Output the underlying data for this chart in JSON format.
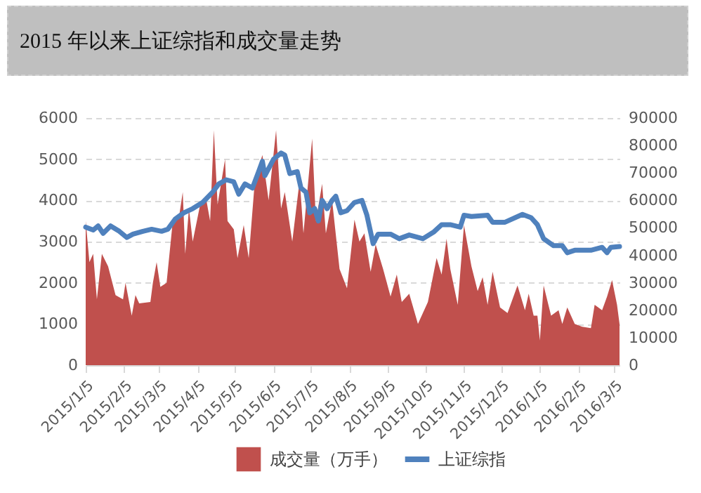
{
  "chart_data": {
    "type": "line",
    "title": "2015 年以来上证综指和成交量走势",
    "xlim": [
      "2015-01-05",
      "2016-03-09"
    ],
    "xticks": [
      {
        "value": "2015-01-05",
        "label": "2015/1/5"
      },
      {
        "value": "2015-02-05",
        "label": "2015/2/5"
      },
      {
        "value": "2015-03-05",
        "label": "2015/3/5"
      },
      {
        "value": "2015-04-05",
        "label": "2015/4/5"
      },
      {
        "value": "2015-05-05",
        "label": "2015/5/5"
      },
      {
        "value": "2015-06-05",
        "label": "2015/6/5"
      },
      {
        "value": "2015-07-05",
        "label": "2015/7/5"
      },
      {
        "value": "2015-08-05",
        "label": "2015/8/5"
      },
      {
        "value": "2015-09-05",
        "label": "2015/9/5"
      },
      {
        "value": "2015-10-05",
        "label": "2015/10/5"
      },
      {
        "value": "2015-11-05",
        "label": "2015/11/5"
      },
      {
        "value": "2015-12-05",
        "label": "2015/12/5"
      },
      {
        "value": "2016-01-05",
        "label": "2016/1/5"
      },
      {
        "value": "2016-02-05",
        "label": "2016/2/5"
      },
      {
        "value": "2016-03-05",
        "label": "2016/3/5"
      }
    ],
    "ylim": [
      0,
      6000
    ],
    "yticks": [
      0,
      1000,
      2000,
      3000,
      4000,
      5000,
      6000
    ],
    "y2lim": [
      0,
      90000
    ],
    "y2ticks": [
      0,
      10000,
      20000,
      30000,
      40000,
      50000,
      60000,
      70000,
      80000,
      90000
    ],
    "grid": "y",
    "legend": "bottom",
    "series": [
      {
        "name": "成交量（万手）",
        "type": "area",
        "axis": "y2",
        "color": "#c0504d",
        "x": [
          "2015-01-05",
          "2015-01-08",
          "2015-01-11",
          "2015-01-14",
          "2015-01-18",
          "2015-01-23",
          "2015-01-29",
          "2015-02-04",
          "2015-02-06",
          "2015-02-11",
          "2015-02-14",
          "2015-02-17",
          "2015-02-26",
          "2015-02-28",
          "2015-03-03",
          "2015-03-06",
          "2015-03-11",
          "2015-03-16",
          "2015-03-21",
          "2015-03-24",
          "2015-03-26",
          "2015-03-29",
          "2015-04-01",
          "2015-04-07",
          "2015-04-12",
          "2015-04-15",
          "2015-04-18",
          "2015-04-21",
          "2015-04-27",
          "2015-04-29",
          "2015-05-04",
          "2015-05-07",
          "2015-05-12",
          "2015-05-16",
          "2015-05-21",
          "2015-05-27",
          "2015-06-01",
          "2015-06-07",
          "2015-06-11",
          "2015-06-14",
          "2015-06-20",
          "2015-06-26",
          "2015-06-29",
          "2015-07-06",
          "2015-07-09",
          "2015-07-14",
          "2015-07-17",
          "2015-07-22",
          "2015-07-28",
          "2015-08-03",
          "2015-08-09",
          "2015-08-13",
          "2015-08-17",
          "2015-08-22",
          "2015-08-26",
          "2015-09-01",
          "2015-09-07",
          "2015-09-12",
          "2015-09-16",
          "2015-09-22",
          "2015-09-29",
          "2015-10-07",
          "2015-10-14",
          "2015-10-18",
          "2015-10-22",
          "2015-10-25",
          "2015-10-31",
          "2015-11-05",
          "2015-11-11",
          "2015-11-16",
          "2015-11-20",
          "2015-11-24",
          "2015-11-28",
          "2015-12-04",
          "2015-12-10",
          "2015-12-18",
          "2015-12-24",
          "2015-12-27",
          "2015-12-31",
          "2016-01-03",
          "2016-01-05",
          "2016-01-08",
          "2016-01-14",
          "2016-01-20",
          "2016-01-23",
          "2016-01-27",
          "2016-02-02",
          "2016-02-08",
          "2016-02-15",
          "2016-02-18",
          "2016-02-24",
          "2016-02-28",
          "2016-03-03",
          "2016-03-07",
          "2016-03-09"
        ],
        "values": [
          52500,
          37500,
          40500,
          24000,
          40500,
          36000,
          25500,
          24000,
          30000,
          18000,
          25500,
          22500,
          23000,
          30000,
          37500,
          28500,
          30000,
          52500,
          54000,
          63000,
          40500,
          57000,
          45000,
          58500,
          60000,
          52500,
          85500,
          58500,
          75000,
          52500,
          49500,
          39000,
          51000,
          39000,
          67500,
          76500,
          60000,
          85500,
          57000,
          63000,
          45000,
          67500,
          48000,
          82500,
          52500,
          66000,
          48000,
          60000,
          35000,
          28000,
          53000,
          45000,
          48000,
          34000,
          44000,
          35000,
          25000,
          33000,
          23000,
          26000,
          15000,
          23000,
          39000,
          33000,
          46000,
          35000,
          22000,
          51000,
          36000,
          27000,
          32000,
          22000,
          34000,
          21000,
          19000,
          29000,
          20000,
          26000,
          18000,
          18000,
          9000,
          29000,
          18000,
          20000,
          15000,
          21000,
          15000,
          14000,
          13500,
          22000,
          20000,
          25000,
          31000,
          22000,
          15000
        ]
      },
      {
        "name": "上证综指",
        "type": "line",
        "color": "#4f81bd",
        "x": [
          "2015-01-05",
          "2015-01-11",
          "2015-01-15",
          "2015-01-19",
          "2015-01-25",
          "2015-02-01",
          "2015-02-07",
          "2015-02-12",
          "2015-02-20",
          "2015-02-27",
          "2015-03-07",
          "2015-03-12",
          "2015-03-18",
          "2015-03-25",
          "2015-04-01",
          "2015-04-09",
          "2015-04-17",
          "2015-04-22",
          "2015-04-28",
          "2015-05-04",
          "2015-05-08",
          "2015-05-13",
          "2015-05-19",
          "2015-05-24",
          "2015-05-27",
          "2015-05-29",
          "2015-06-05",
          "2015-06-11",
          "2015-06-14",
          "2015-06-18",
          "2015-06-24",
          "2015-06-27",
          "2015-07-01",
          "2015-07-04",
          "2015-07-08",
          "2015-07-11",
          "2015-07-14",
          "2015-07-18",
          "2015-07-22",
          "2015-07-25",
          "2015-07-29",
          "2015-08-03",
          "2015-08-09",
          "2015-08-15",
          "2015-08-19",
          "2015-08-24",
          "2015-08-28",
          "2015-09-07",
          "2015-09-14",
          "2015-09-22",
          "2015-10-03",
          "2015-10-12",
          "2015-10-18",
          "2015-10-25",
          "2015-11-02",
          "2015-11-05",
          "2015-11-11",
          "2015-11-24",
          "2015-11-28",
          "2015-12-08",
          "2015-12-22",
          "2015-12-29",
          "2016-01-03",
          "2016-01-08",
          "2016-01-16",
          "2016-01-23",
          "2016-01-27",
          "2016-02-02",
          "2016-02-15",
          "2016-02-24",
          "2016-02-28",
          "2016-03-02",
          "2016-03-09"
        ],
        "values": [
          3350,
          3280,
          3380,
          3200,
          3380,
          3250,
          3100,
          3180,
          3250,
          3300,
          3250,
          3300,
          3550,
          3700,
          3800,
          3950,
          4200,
          4400,
          4500,
          4450,
          4150,
          4400,
          4300,
          4700,
          4950,
          4600,
          5000,
          5150,
          5100,
          4650,
          4700,
          4300,
          4200,
          3700,
          3800,
          3500,
          4000,
          3800,
          4000,
          4100,
          3700,
          3750,
          3950,
          4000,
          3640,
          2950,
          3180,
          3180,
          3070,
          3160,
          3070,
          3240,
          3410,
          3410,
          3350,
          3640,
          3610,
          3640,
          3470,
          3470,
          3660,
          3580,
          3410,
          3070,
          2900,
          2900,
          2730,
          2790,
          2790,
          2860,
          2730,
          2860,
          2880
        ]
      }
    ]
  }
}
